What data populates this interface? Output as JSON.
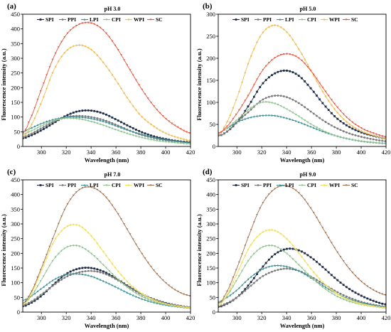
{
  "chart_data": [
    {
      "type": "scatter",
      "panel": "(a)",
      "title": "pH 3.0",
      "xlabel": "Wavelength (nm)",
      "ylabel": "Fluorescence intensity (a.u.)",
      "xlim": [
        285,
        420
      ],
      "ylim": [
        0,
        450
      ],
      "xticks": [
        "300",
        "320",
        "340",
        "360",
        "380",
        "400",
        "420"
      ],
      "yticks": [
        "0",
        "50",
        "100",
        "150",
        "200",
        "250",
        "300",
        "350",
        "400",
        "450"
      ],
      "legend": [
        "SPI",
        "PPI",
        "LPI",
        "CPI",
        "WPI",
        "SC"
      ],
      "legend_placement": "top",
      "x": [
        285,
        290,
        300,
        310,
        320,
        330,
        340,
        350,
        360,
        370,
        380,
        390,
        400,
        410,
        420
      ],
      "series": [
        {
          "name": "SPI",
          "color": "#1e2b44",
          "values": [
            28,
            35,
            55,
            80,
            105,
            120,
            122,
            112,
            92,
            70,
            50,
            35,
            25,
            18,
            14
          ]
        },
        {
          "name": "PPI",
          "color": "#7a7a7a",
          "values": [
            32,
            40,
            62,
            85,
            100,
            104,
            100,
            90,
            74,
            56,
            40,
            29,
            21,
            16,
            12
          ]
        },
        {
          "name": "LPI",
          "color": "#3f8f93",
          "values": [
            50,
            60,
            78,
            92,
            99,
            100,
            95,
            85,
            70,
            55,
            42,
            31,
            23,
            17,
            12
          ]
        },
        {
          "name": "CPI",
          "color": "#8fc28f",
          "values": [
            42,
            50,
            70,
            88,
            96,
            94,
            85,
            72,
            57,
            43,
            31,
            22,
            16,
            12,
            9
          ]
        },
        {
          "name": "WPI",
          "color": "#f0bf5a",
          "values": [
            35,
            60,
            150,
            260,
            325,
            345,
            330,
            285,
            225,
            160,
            105,
            70,
            45,
            30,
            20
          ]
        },
        {
          "name": "SC",
          "color": "#e8553e",
          "values": [
            45,
            85,
            195,
            305,
            380,
            415,
            420,
            395,
            340,
            270,
            200,
            140,
            95,
            65,
            45
          ]
        }
      ]
    },
    {
      "type": "scatter",
      "panel": "(b)",
      "title": "pH 5.0",
      "xlabel": "Wavelength (nm)",
      "ylabel": "Fluorescence intensity (a.u.)",
      "xlim": [
        285,
        420
      ],
      "ylim": [
        0,
        300
      ],
      "xticks": [
        "300",
        "320",
        "340",
        "360",
        "380",
        "400",
        "420"
      ],
      "yticks": [
        "0",
        "50",
        "100",
        "150",
        "200",
        "250",
        "300"
      ],
      "legend": [
        "SPI",
        "PPI",
        "LPI",
        "CPI",
        "WPI",
        "SC"
      ],
      "legend_placement": "top",
      "x": [
        285,
        290,
        300,
        310,
        320,
        330,
        340,
        350,
        360,
        370,
        380,
        390,
        400,
        410,
        420
      ],
      "series": [
        {
          "name": "SPI",
          "color": "#1e2b44",
          "values": [
            25,
            30,
            55,
            95,
            140,
            165,
            172,
            160,
            130,
            95,
            65,
            45,
            32,
            24,
            18
          ]
        },
        {
          "name": "PPI",
          "color": "#7a7a7a",
          "values": [
            25,
            30,
            55,
            80,
            105,
            115,
            112,
            98,
            78,
            58,
            42,
            30,
            22,
            16,
            12
          ]
        },
        {
          "name": "LPI",
          "color": "#3f8f93",
          "values": [
            30,
            38,
            55,
            65,
            70,
            70,
            64,
            55,
            44,
            33,
            24,
            17,
            12,
            9,
            7
          ]
        },
        {
          "name": "CPI",
          "color": "#8fc28f",
          "values": [
            30,
            38,
            60,
            85,
            100,
            98,
            85,
            68,
            50,
            35,
            24,
            17,
            12,
            9,
            7
          ]
        },
        {
          "name": "WPI",
          "color": "#f0bf5a",
          "values": [
            28,
            45,
            110,
            195,
            255,
            275,
            260,
            220,
            170,
            120,
            80,
            52,
            35,
            25,
            18
          ]
        },
        {
          "name": "SC",
          "color": "#e8553e",
          "values": [
            30,
            40,
            75,
            120,
            170,
            200,
            210,
            200,
            170,
            130,
            92,
            62,
            42,
            30,
            22
          ]
        }
      ]
    },
    {
      "type": "scatter",
      "panel": "(c)",
      "title": "pH 7.0",
      "xlabel": "Wavelength (nm)",
      "ylabel": "Fluorescence intensity (a.u.)",
      "xlim": [
        285,
        420
      ],
      "ylim": [
        0,
        450
      ],
      "xticks": [
        "300",
        "320",
        "340",
        "360",
        "380",
        "400",
        "420"
      ],
      "yticks": [
        "0",
        "50",
        "100",
        "150",
        "200",
        "250",
        "300",
        "350",
        "400",
        "450"
      ],
      "legend": [
        "SPI",
        "PPI",
        "LPI",
        "CPI",
        "WPI",
        "SC"
      ],
      "legend_placement": "top",
      "x": [
        285,
        290,
        300,
        310,
        320,
        330,
        340,
        350,
        360,
        370,
        380,
        390,
        400,
        410,
        420
      ],
      "series": [
        {
          "name": "SPI",
          "color": "#1e2b44",
          "values": [
            20,
            28,
            55,
            95,
            130,
            148,
            150,
            138,
            115,
            88,
            63,
            44,
            31,
            22,
            16
          ]
        },
        {
          "name": "PPI",
          "color": "#7a7a7a",
          "values": [
            25,
            32,
            60,
            92,
            120,
            135,
            140,
            132,
            112,
            86,
            62,
            43,
            30,
            22,
            16
          ]
        },
        {
          "name": "LPI",
          "color": "#3f8f93",
          "values": [
            40,
            50,
            80,
            110,
            128,
            130,
            122,
            105,
            85,
            64,
            46,
            33,
            24,
            18,
            14
          ]
        },
        {
          "name": "CPI",
          "color": "#8fc28f",
          "values": [
            30,
            45,
            110,
            180,
            220,
            225,
            200,
            160,
            118,
            82,
            55,
            37,
            26,
            19,
            14
          ]
        },
        {
          "name": "WPI",
          "color": "#f0e05a",
          "values": [
            25,
            50,
            140,
            240,
            290,
            295,
            260,
            205,
            148,
            100,
            65,
            42,
            28,
            20,
            15
          ]
        },
        {
          "name": "SC",
          "color": "#a0714f",
          "values": [
            30,
            55,
            150,
            260,
            360,
            415,
            425,
            400,
            345,
            275,
            205,
            145,
            100,
            70,
            55
          ]
        }
      ]
    },
    {
      "type": "scatter",
      "panel": "(d)",
      "title": "pH 9.0",
      "xlabel": "Wavelength (nm)",
      "ylabel": "Fluorescence intensity (a.u.)",
      "xlim": [
        285,
        420
      ],
      "ylim": [
        0,
        450
      ],
      "xticks": [
        "300",
        "320",
        "340",
        "360",
        "380",
        "400",
        "420"
      ],
      "yticks": [
        "0",
        "50",
        "100",
        "150",
        "200",
        "250",
        "300",
        "350",
        "400",
        "450"
      ],
      "legend": [
        "SPI",
        "PPI",
        "LPI",
        "CPI",
        "WPI",
        "SC"
      ],
      "legend_placement": "top",
      "x": [
        285,
        290,
        300,
        310,
        320,
        330,
        340,
        350,
        360,
        370,
        380,
        390,
        400,
        410,
        420
      ],
      "series": [
        {
          "name": "SPI",
          "color": "#1e2b44",
          "values": [
            18,
            25,
            50,
            95,
            150,
            195,
            215,
            210,
            185,
            150,
            112,
            80,
            56,
            38,
            26
          ]
        },
        {
          "name": "PPI",
          "color": "#7a7a7a",
          "values": [
            20,
            27,
            50,
            85,
            120,
            140,
            148,
            140,
            120,
            95,
            70,
            50,
            35,
            25,
            18
          ]
        },
        {
          "name": "LPI",
          "color": "#3f8f93",
          "values": [
            35,
            45,
            75,
            115,
            145,
            158,
            155,
            140,
            115,
            88,
            64,
            45,
            32,
            23,
            17
          ]
        },
        {
          "name": "CPI",
          "color": "#8fc28f",
          "values": [
            30,
            45,
            110,
            180,
            220,
            225,
            200,
            160,
            118,
            82,
            55,
            37,
            26,
            19,
            14
          ]
        },
        {
          "name": "WPI",
          "color": "#f0e05a",
          "values": [
            25,
            45,
            130,
            220,
            270,
            278,
            250,
            200,
            145,
            98,
            64,
            42,
            28,
            20,
            15
          ]
        },
        {
          "name": "SC",
          "color": "#a0714f",
          "values": [
            30,
            55,
            150,
            265,
            365,
            418,
            430,
            405,
            350,
            280,
            210,
            150,
            105,
            75,
            58
          ]
        }
      ]
    }
  ]
}
